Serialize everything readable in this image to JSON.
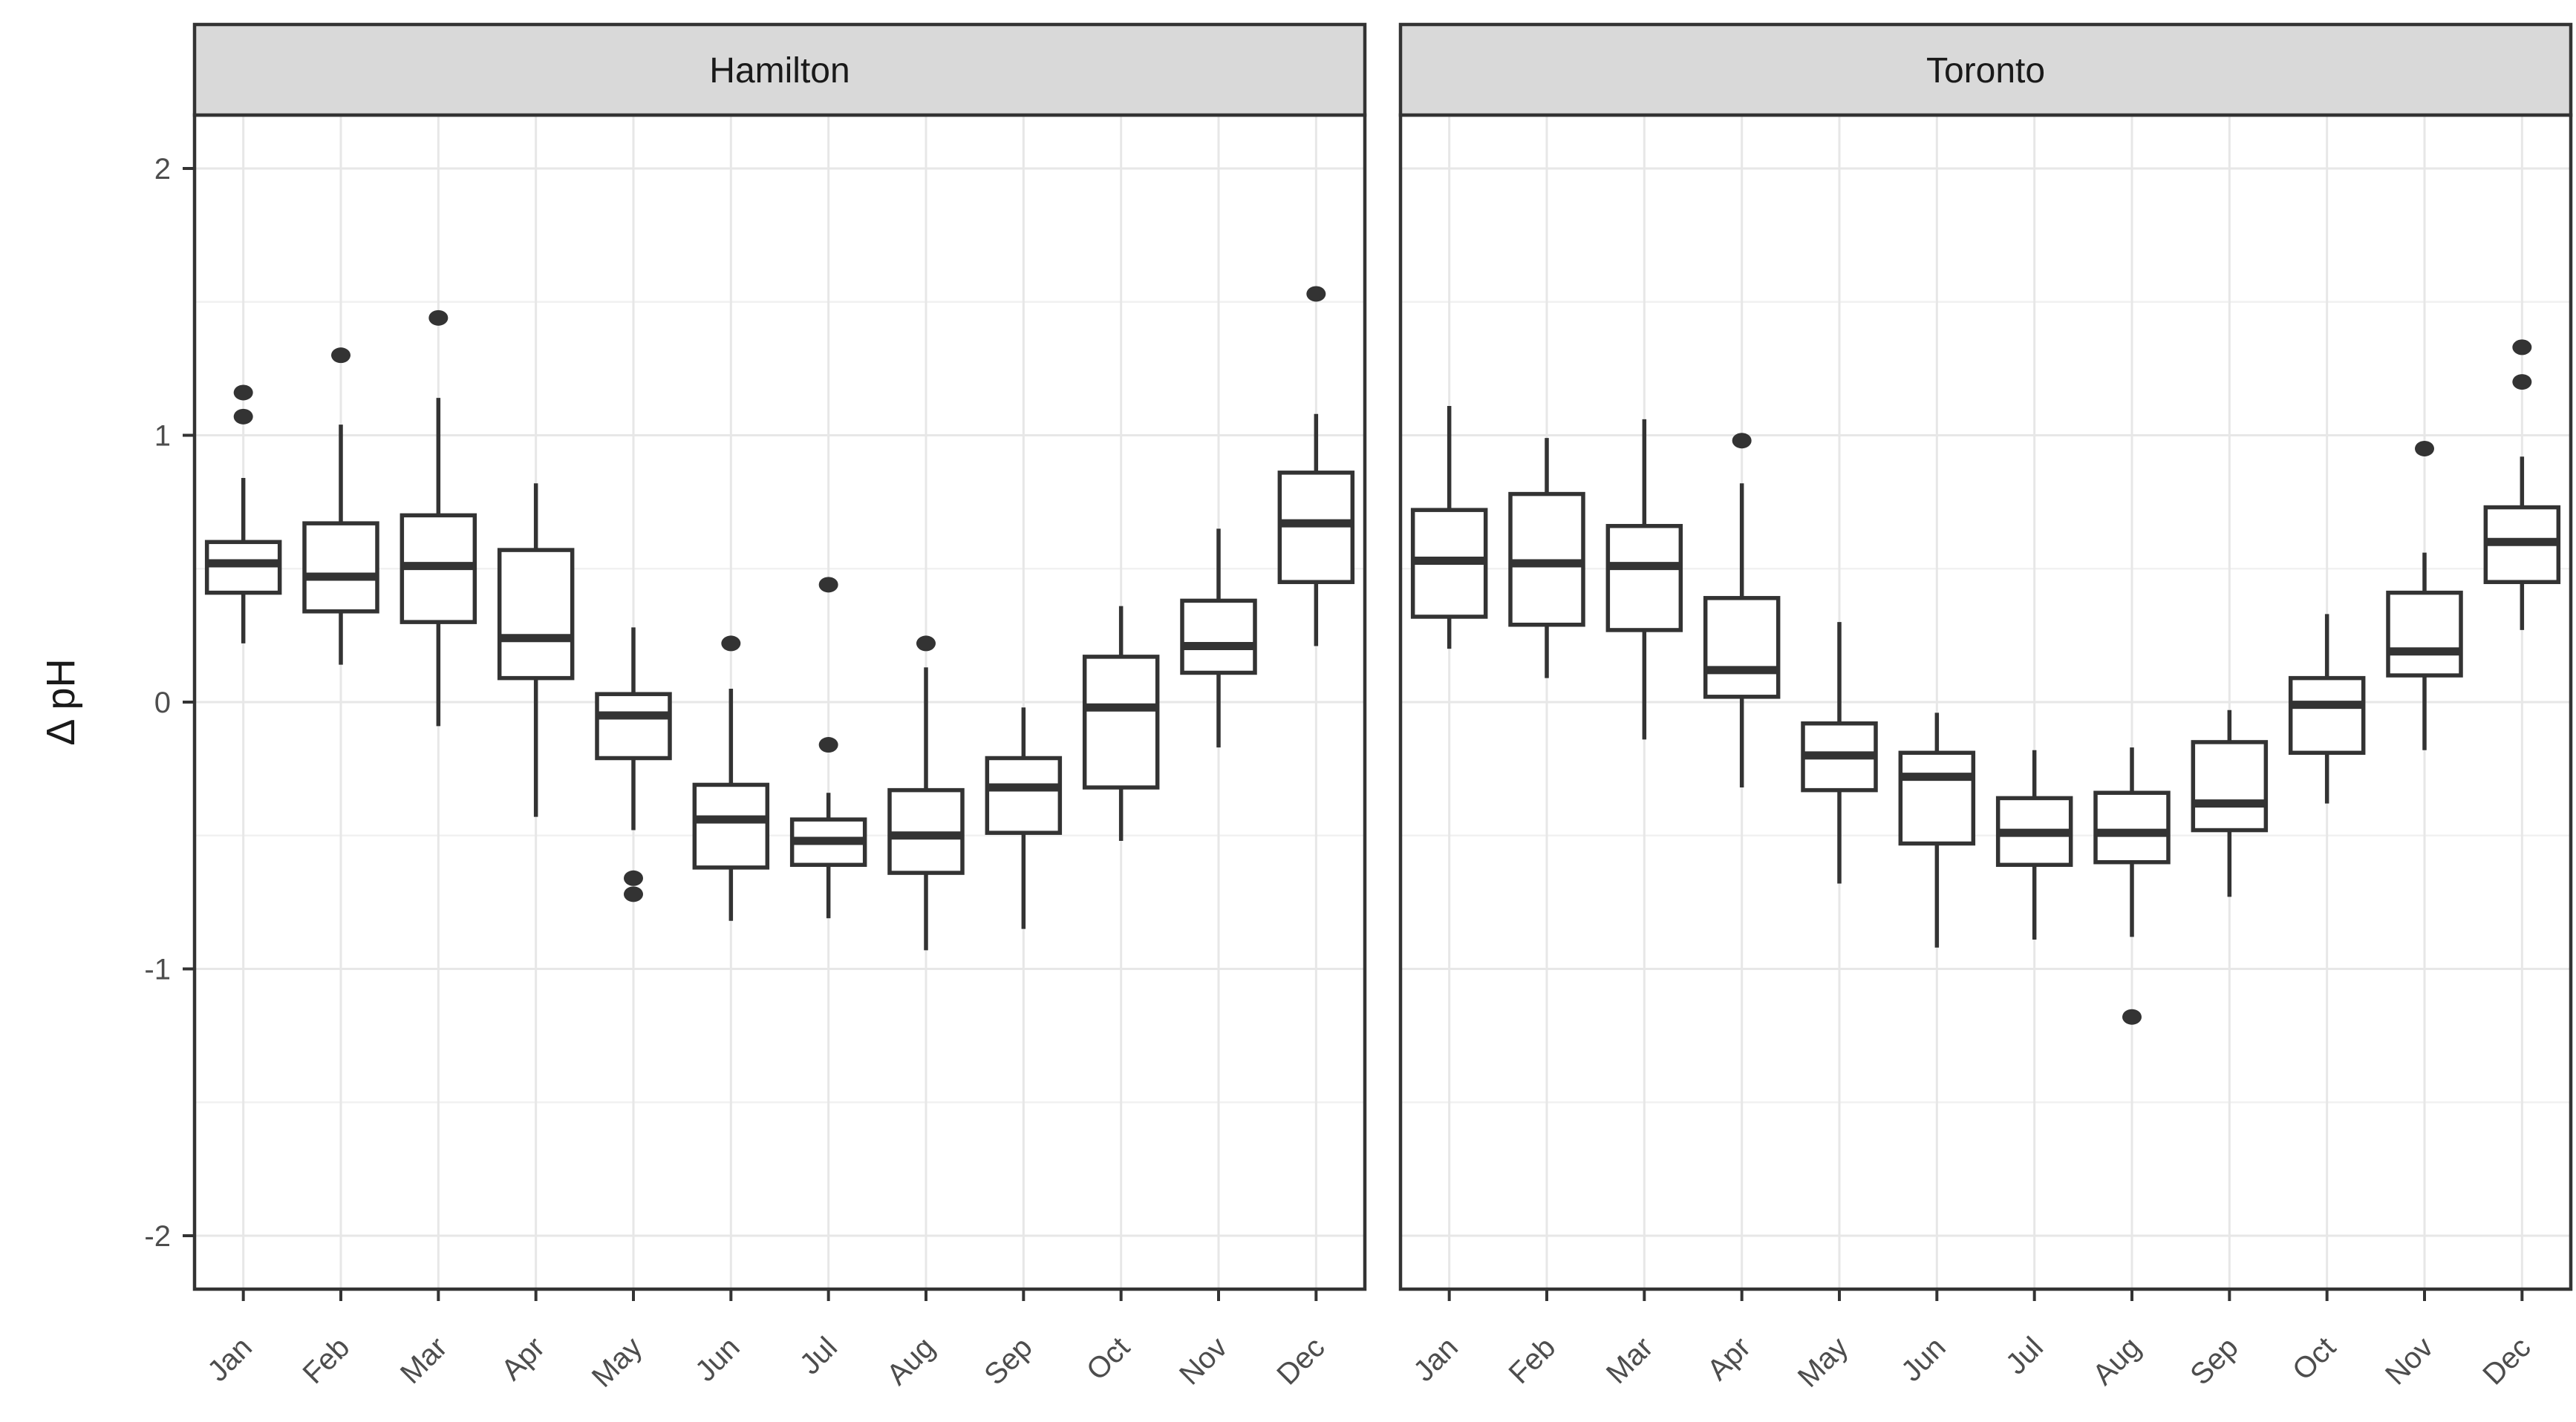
{
  "chart_data": {
    "type": "boxplot",
    "title": "",
    "xlabel": "",
    "ylabel": "Δ pH",
    "ylim": [
      -2.2,
      2.2
    ],
    "y_major_ticks": [
      2,
      1,
      0,
      -1,
      -2
    ],
    "y_tick_labels": [
      "2",
      "1",
      "0",
      "-1",
      "-2"
    ],
    "y_minor_ticks": [
      1.5,
      0.5,
      -0.5,
      -1.5
    ],
    "grid": "major+minor, vertical line per category",
    "legend_position": "none",
    "categories": [
      "Jan",
      "Feb",
      "Mar",
      "Apr",
      "May",
      "Jun",
      "Jul",
      "Aug",
      "Sep",
      "Oct",
      "Nov",
      "Dec"
    ],
    "facets": [
      {
        "label": "Hamilton",
        "boxes": [
          {
            "month": "Jan",
            "whisker_low": 0.22,
            "q1": 0.41,
            "median": 0.52,
            "q3": 0.6,
            "whisker_high": 0.84,
            "outliers": [
              1.16,
              1.07
            ]
          },
          {
            "month": "Feb",
            "whisker_low": 0.14,
            "q1": 0.34,
            "median": 0.47,
            "q3": 0.67,
            "whisker_high": 1.04,
            "outliers": [
              1.3
            ]
          },
          {
            "month": "Mar",
            "whisker_low": -0.09,
            "q1": 0.3,
            "median": 0.51,
            "q3": 0.7,
            "whisker_high": 1.14,
            "outliers": [
              1.44
            ]
          },
          {
            "month": "Apr",
            "whisker_low": -0.43,
            "q1": 0.09,
            "median": 0.24,
            "q3": 0.57,
            "whisker_high": 0.82,
            "outliers": []
          },
          {
            "month": "May",
            "whisker_low": -0.48,
            "q1": -0.21,
            "median": -0.05,
            "q3": 0.03,
            "whisker_high": 0.28,
            "outliers": [
              -0.66,
              -0.72
            ]
          },
          {
            "month": "Jun",
            "whisker_low": -0.82,
            "q1": -0.62,
            "median": -0.44,
            "q3": -0.31,
            "whisker_high": 0.05,
            "outliers": [
              0.22
            ]
          },
          {
            "month": "Jul",
            "whisker_low": -0.81,
            "q1": -0.61,
            "median": -0.52,
            "q3": -0.44,
            "whisker_high": -0.34,
            "outliers": [
              0.44,
              -0.16
            ]
          },
          {
            "month": "Aug",
            "whisker_low": -0.93,
            "q1": -0.64,
            "median": -0.5,
            "q3": -0.33,
            "whisker_high": 0.13,
            "outliers": [
              0.22
            ]
          },
          {
            "month": "Sep",
            "whisker_low": -0.85,
            "q1": -0.49,
            "median": -0.32,
            "q3": -0.21,
            "whisker_high": -0.02,
            "outliers": []
          },
          {
            "month": "Oct",
            "whisker_low": -0.52,
            "q1": -0.32,
            "median": -0.02,
            "q3": 0.17,
            "whisker_high": 0.36,
            "outliers": []
          },
          {
            "month": "Nov",
            "whisker_low": -0.17,
            "q1": 0.11,
            "median": 0.21,
            "q3": 0.38,
            "whisker_high": 0.65,
            "outliers": []
          },
          {
            "month": "Dec",
            "whisker_low": 0.21,
            "q1": 0.45,
            "median": 0.67,
            "q3": 0.86,
            "whisker_high": 1.08,
            "outliers": [
              1.53
            ]
          }
        ]
      },
      {
        "label": "Toronto",
        "boxes": [
          {
            "month": "Jan",
            "whisker_low": 0.2,
            "q1": 0.32,
            "median": 0.53,
            "q3": 0.72,
            "whisker_high": 1.11,
            "outliers": []
          },
          {
            "month": "Feb",
            "whisker_low": 0.09,
            "q1": 0.29,
            "median": 0.52,
            "q3": 0.78,
            "whisker_high": 0.99,
            "outliers": []
          },
          {
            "month": "Mar",
            "whisker_low": -0.14,
            "q1": 0.27,
            "median": 0.51,
            "q3": 0.66,
            "whisker_high": 1.06,
            "outliers": []
          },
          {
            "month": "Apr",
            "whisker_low": -0.32,
            "q1": 0.02,
            "median": 0.12,
            "q3": 0.39,
            "whisker_high": 0.82,
            "outliers": [
              0.98
            ]
          },
          {
            "month": "May",
            "whisker_low": -0.68,
            "q1": -0.33,
            "median": -0.2,
            "q3": -0.08,
            "whisker_high": 0.3,
            "outliers": []
          },
          {
            "month": "Jun",
            "whisker_low": -0.92,
            "q1": -0.53,
            "median": -0.28,
            "q3": -0.19,
            "whisker_high": -0.04,
            "outliers": []
          },
          {
            "month": "Jul",
            "whisker_low": -0.89,
            "q1": -0.61,
            "median": -0.49,
            "q3": -0.36,
            "whisker_high": -0.18,
            "outliers": []
          },
          {
            "month": "Aug",
            "whisker_low": -0.88,
            "q1": -0.6,
            "median": -0.49,
            "q3": -0.34,
            "whisker_high": -0.17,
            "outliers": [
              -1.18
            ]
          },
          {
            "month": "Sep",
            "whisker_low": -0.73,
            "q1": -0.48,
            "median": -0.38,
            "q3": -0.15,
            "whisker_high": -0.03,
            "outliers": []
          },
          {
            "month": "Oct",
            "whisker_low": -0.38,
            "q1": -0.19,
            "median": -0.01,
            "q3": 0.09,
            "whisker_high": 0.33,
            "outliers": []
          },
          {
            "month": "Nov",
            "whisker_low": -0.18,
            "q1": 0.1,
            "median": 0.19,
            "q3": 0.41,
            "whisker_high": 0.56,
            "outliers": [
              0.95
            ]
          },
          {
            "month": "Dec",
            "whisker_low": 0.27,
            "q1": 0.45,
            "median": 0.6,
            "q3": 0.73,
            "whisker_high": 0.92,
            "outliers": [
              1.33,
              1.2
            ]
          }
        ]
      }
    ]
  },
  "colors": {
    "background": "#ffffff",
    "strip_fill": "#d9d9d9",
    "strip_text": "#1a1a1a",
    "panel_border": "#333333",
    "box_stroke": "#333333",
    "box_fill": "#ffffff",
    "outlier_fill": "#333333",
    "grid_major": "#e7e7e7",
    "grid_minor": "#f1f1f1",
    "axis_text": "#4d4d4d",
    "tick_color": "#333333",
    "axis_title": "#1a1a1a"
  }
}
